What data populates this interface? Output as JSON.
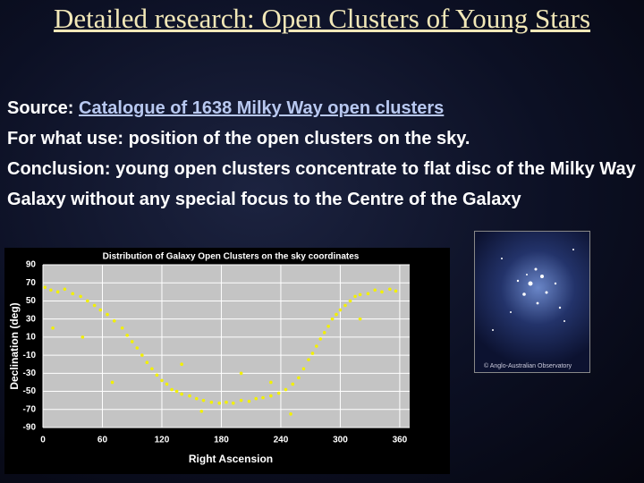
{
  "slide": {
    "title": "Detailed research:  Open Clusters of Young Stars",
    "source_label": "Source:",
    "source_link": "Catalogue of 1638 Milky Way open clusters",
    "use": "For what use: position of the open clusters on the sky.",
    "conclusion": "Conclusion: young open clusters concentrate to flat disc of the Milky Way Galaxy without any special focus to the Centre of the Galaxy"
  },
  "photo": {
    "credit": "© Anglo-Australian Observatory"
  },
  "chart_data": {
    "type": "scatter",
    "title": "Distribution of Galaxy Open Clusters on the sky coordinates",
    "x_label": "Right Ascension",
    "y_label": "Declination (deg)",
    "color": "#f2f000",
    "grid": true,
    "xlim": [
      0,
      370
    ],
    "ylim": [
      -90,
      90
    ],
    "xticks": [
      0,
      60,
      120,
      180,
      240,
      300,
      360
    ],
    "yticks": [
      90,
      70,
      50,
      30,
      10,
      -10,
      -30,
      -50,
      -70,
      -90
    ],
    "x": [
      2,
      8,
      15,
      22,
      30,
      38,
      45,
      52,
      58,
      65,
      72,
      80,
      85,
      90,
      95,
      100,
      105,
      110,
      115,
      120,
      125,
      130,
      135,
      140,
      148,
      155,
      162,
      170,
      178,
      185,
      192,
      200,
      208,
      215,
      222,
      230,
      238,
      245,
      252,
      258,
      263,
      268,
      272,
      276,
      280,
      284,
      288,
      292,
      296,
      300,
      305,
      310,
      315,
      320,
      328,
      335,
      342,
      350,
      356,
      10,
      70,
      140,
      200,
      250,
      320,
      40,
      160,
      230
    ],
    "y": [
      65,
      62,
      60,
      63,
      58,
      55,
      50,
      45,
      40,
      35,
      28,
      20,
      12,
      5,
      -2,
      -10,
      -18,
      -25,
      -32,
      -38,
      -42,
      -48,
      -50,
      -53,
      -55,
      -58,
      -60,
      -62,
      -63,
      -62,
      -63,
      -60,
      -61,
      -58,
      -57,
      -55,
      -52,
      -48,
      -42,
      -35,
      -25,
      -15,
      -8,
      0,
      8,
      15,
      22,
      30,
      35,
      40,
      45,
      50,
      55,
      57,
      58,
      62,
      60,
      63,
      61,
      20,
      -40,
      -20,
      -30,
      -75,
      30,
      10,
      -72,
      -40
    ]
  }
}
